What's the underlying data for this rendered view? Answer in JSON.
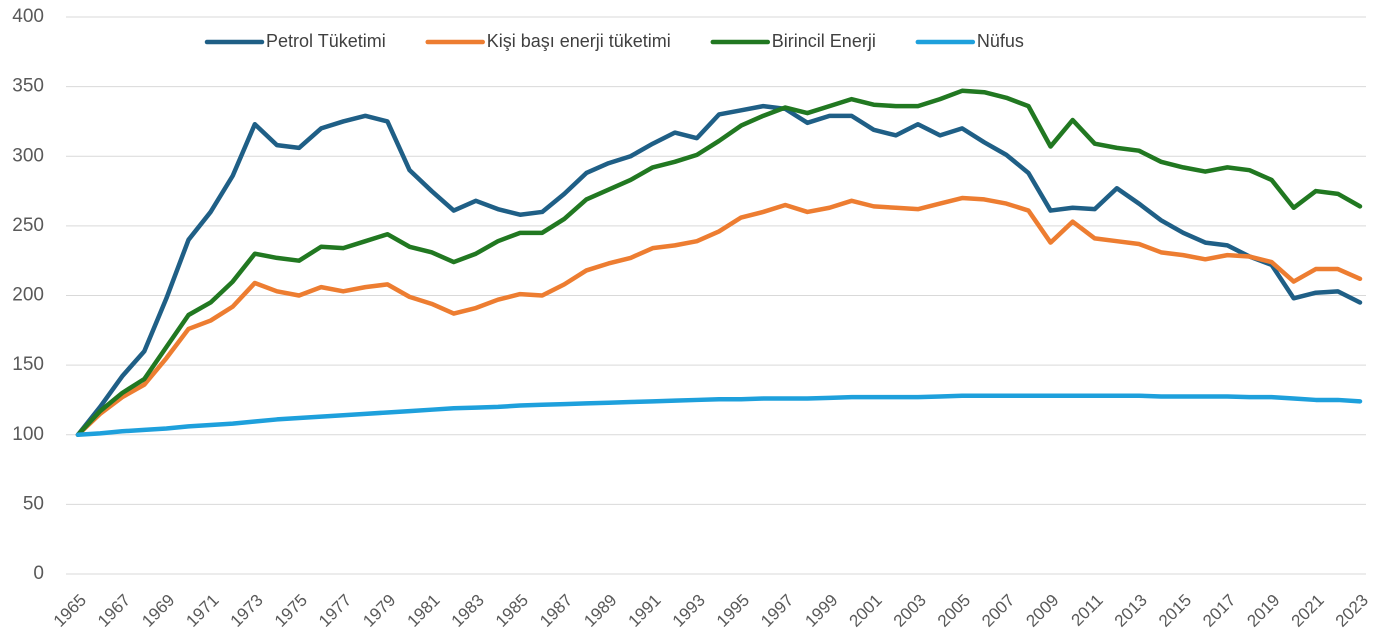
{
  "chart_data": {
    "type": "line",
    "x": [
      1965,
      1966,
      1967,
      1968,
      1969,
      1970,
      1971,
      1972,
      1973,
      1974,
      1975,
      1976,
      1977,
      1978,
      1979,
      1980,
      1981,
      1982,
      1983,
      1984,
      1985,
      1986,
      1987,
      1988,
      1989,
      1990,
      1991,
      1992,
      1993,
      1994,
      1995,
      1996,
      1997,
      1998,
      1999,
      2000,
      2001,
      2002,
      2003,
      2004,
      2005,
      2006,
      2007,
      2008,
      2009,
      2010,
      2011,
      2012,
      2013,
      2014,
      2015,
      2016,
      2017,
      2018,
      2019,
      2020,
      2021,
      2022,
      2023
    ],
    "xlim": [
      1965,
      2023
    ],
    "xticks": [
      1965,
      1967,
      1969,
      1971,
      1973,
      1975,
      1977,
      1979,
      1981,
      1983,
      1985,
      1987,
      1989,
      1991,
      1993,
      1995,
      1997,
      1999,
      2001,
      2003,
      2005,
      2007,
      2009,
      2011,
      2013,
      2015,
      2017,
      2019,
      2021,
      2023
    ],
    "ylim": [
      0,
      400
    ],
    "yticks": [
      0,
      50,
      100,
      150,
      200,
      250,
      300,
      350,
      400
    ],
    "grid": true,
    "legend": "top",
    "series": [
      {
        "name": "Petrol Tüketimi",
        "color": "#1f5f86",
        "values": [
          100,
          120,
          142,
          160,
          198,
          240,
          260,
          286,
          323,
          308,
          306,
          320,
          325,
          329,
          325,
          290,
          275,
          261,
          268,
          262,
          258,
          260,
          273,
          288,
          295,
          300,
          309,
          317,
          313,
          330,
          333,
          336,
          334,
          324,
          329,
          329,
          319,
          315,
          323,
          315,
          320,
          310,
          301,
          288,
          261,
          263,
          262,
          277,
          266,
          254,
          245,
          238,
          236,
          228,
          222,
          198,
          202,
          203,
          195
        ]
      },
      {
        "name": "Kişi başı enerji tüketimi",
        "color": "#ed7d31",
        "values": [
          100,
          115,
          127,
          136,
          155,
          176,
          182,
          192,
          209,
          203,
          200,
          206,
          203,
          206,
          208,
          199,
          194,
          187,
          191,
          197,
          201,
          200,
          208,
          218,
          223,
          227,
          234,
          236,
          239,
          246,
          256,
          260,
          265,
          260,
          263,
          268,
          264,
          263,
          262,
          266,
          270,
          269,
          266,
          261,
          238,
          253,
          241,
          239,
          237,
          231,
          229,
          226,
          229,
          228,
          224,
          210,
          219,
          219,
          212
        ]
      },
      {
        "name": "Birincil Enerji",
        "color": "#217821",
        "values": [
          100,
          117,
          130,
          140,
          163,
          186,
          195,
          210,
          230,
          227,
          225,
          235,
          234,
          239,
          244,
          235,
          231,
          224,
          230,
          239,
          245,
          245,
          255,
          269,
          276,
          283,
          292,
          296,
          301,
          311,
          322,
          329,
          335,
          331,
          336,
          341,
          337,
          336,
          336,
          341,
          347,
          346,
          342,
          336,
          307,
          326,
          309,
          306,
          304,
          296,
          292,
          289,
          292,
          290,
          283,
          263,
          275,
          273,
          264
        ]
      },
      {
        "name": "Nüfus",
        "color": "#1ea0dc",
        "values": [
          100,
          101,
          102.5,
          103.5,
          104.5,
          106,
          107,
          108,
          109.5,
          111,
          112,
          113,
          114,
          115,
          116,
          117,
          118,
          119,
          119.5,
          120,
          121,
          121.5,
          122,
          122.5,
          123,
          123.5,
          124,
          124.5,
          125,
          125.5,
          125.5,
          126,
          126,
          126,
          126.5,
          127,
          127,
          127,
          127,
          127.5,
          128,
          128,
          128,
          128,
          128,
          128,
          128,
          128,
          128,
          127.5,
          127.5,
          127.5,
          127.5,
          127,
          127,
          126,
          125,
          125,
          124
        ]
      }
    ]
  }
}
